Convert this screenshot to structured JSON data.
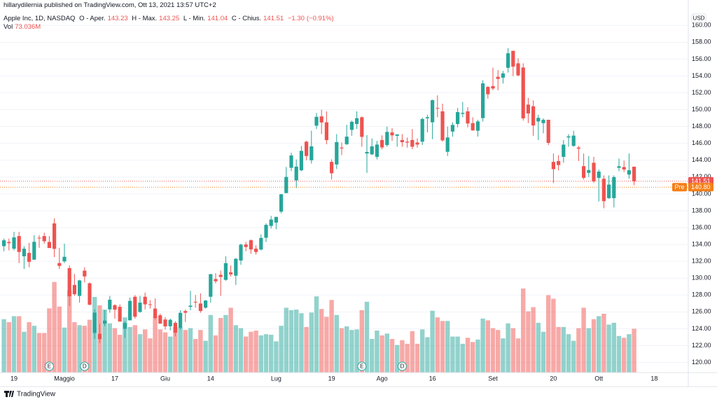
{
  "published": "hillarydilernia published on TradingView.com, Ott 13, 2021 13:57 UTC+2",
  "branding": "TradingView",
  "chart_data": {
    "type": "candlestick",
    "title": "Apple Inc, 1D, NASDAQ",
    "ohlc_legend": [
      {
        "label": "O - Aper.",
        "value": 143.23
      },
      {
        "label": "H - Max.",
        "value": 143.25
      },
      {
        "label": "L - Min.",
        "value": 141.04
      },
      {
        "label": "C - Chius.",
        "value": 141.51
      }
    ],
    "change": {
      "value": -1.3,
      "label": "−1.30"
    },
    "change_percent": {
      "value": -0.91,
      "label": "(−0.91%)"
    },
    "currency": "USD",
    "up_color": "#26a69a",
    "down_color": "#ef5350",
    "grid": true,
    "categories": [
      null,
      null,
      "19",
      null,
      null,
      null,
      null,
      null,
      null,
      null,
      null,
      null,
      "Maggio",
      null,
      null,
      null,
      null,
      null,
      null,
      null,
      null,
      null,
      "17",
      null,
      null,
      null,
      null,
      null,
      null,
      null,
      null,
      null,
      "Giu",
      null,
      null,
      null,
      null,
      null,
      null,
      null,
      null,
      "14",
      null,
      null,
      null,
      null,
      null,
      null,
      null,
      null,
      null,
      null,
      null,
      null,
      "Lug",
      null,
      null,
      null,
      null,
      null,
      null,
      null,
      null,
      null,
      null,
      "19",
      null,
      null,
      null,
      null,
      null,
      null,
      null,
      null,
      null,
      "Ago",
      null,
      null,
      null,
      null,
      null,
      null,
      null,
      null,
      null,
      "16",
      null,
      null,
      null,
      null,
      null,
      null,
      null,
      null,
      null,
      null,
      null,
      "Set",
      null,
      null,
      null,
      null,
      null,
      null,
      null,
      null,
      null,
      null,
      null,
      "20",
      null,
      null,
      null,
      null,
      null,
      null,
      null,
      null,
      "Ott",
      null,
      null,
      null,
      null,
      null,
      null,
      null,
      null,
      null,
      null,
      "18"
    ],
    "events": [
      null,
      null,
      null,
      null,
      null,
      null,
      null,
      null,
      null,
      "E",
      null,
      null,
      null,
      null,
      null,
      null,
      "D",
      null,
      null,
      null,
      null,
      null,
      null,
      null,
      null,
      null,
      null,
      null,
      null,
      null,
      null,
      null,
      null,
      null,
      null,
      null,
      null,
      null,
      null,
      null,
      null,
      null,
      null,
      null,
      null,
      null,
      null,
      null,
      null,
      null,
      null,
      null,
      null,
      null,
      null,
      null,
      null,
      null,
      null,
      null,
      null,
      null,
      null,
      null,
      null,
      null,
      null,
      null,
      null,
      null,
      null,
      "E",
      null,
      null,
      null,
      null,
      null,
      null,
      null,
      "D",
      null,
      null,
      null,
      null,
      null,
      null,
      null,
      null,
      null,
      null,
      null,
      null,
      null,
      null,
      null,
      null,
      null,
      null,
      null,
      null,
      null,
      null,
      null,
      null,
      null,
      null,
      null,
      null,
      null,
      null,
      null,
      null,
      null,
      null,
      null,
      null,
      null,
      null,
      null,
      null,
      null,
      null,
      null,
      null,
      null,
      null,
      null,
      null,
      null,
      null
    ],
    "open": [
      133.8,
      134.3,
      133.5,
      135.0,
      132.6,
      133.0,
      132.2,
      134.8,
      135.0,
      134.3,
      136.5,
      131.8,
      132.0,
      131.2,
      129.2,
      127.9,
      130.9,
      129.4,
      123.5,
      123.4,
      124.6,
      126.3,
      126.8,
      126.6,
      124.0,
      125.0,
      127.8,
      126.0,
      127.8,
      126.9,
      126.4,
      125.6,
      125.1,
      124.3,
      124.7,
      124.1,
      126.1,
      126.6,
      127.2,
      127.0,
      126.5,
      127.8,
      129.9,
      130.4,
      129.8,
      130.7,
      130.3,
      132.1,
      134.0,
      134.5,
      133.5,
      133.4,
      134.8,
      136.2,
      136.6,
      137.9,
      140.1,
      143.1,
      141.6,
      142.8,
      146.2,
      144.0,
      148.1,
      149.2,
      148.5,
      143.8,
      143.5,
      145.5,
      145.9,
      147.6,
      148.3,
      149.1,
      144.8,
      144.7,
      144.4,
      146.4,
      145.8,
      147.3,
      146.9,
      146.4,
      146.2,
      146.4,
      146.1,
      146.2,
      148.97,
      148.5,
      150.2,
      149.8,
      145.0,
      147.4,
      148.3,
      149.5,
      149.8,
      148.4,
      147.5,
      149.0,
      152.7,
      152.8,
      153.9,
      153.8,
      154.97,
      156.98,
      155.5,
      155.0,
      150.6,
      150.4,
      148.6,
      148.4,
      148.8,
      143.8,
      143.9,
      144.4,
      146.7,
      145.7,
      145.5,
      143.3,
      142.5,
      143.7,
      141.9,
      141.8,
      139.5,
      139.5,
      143.1,
      143.2,
      142.3,
      143.23,
      null,
      null,
      null,
      null
    ],
    "high": [
      134.7,
      134.7,
      135.5,
      135.5,
      133.8,
      134.2,
      135.1,
      135.1,
      135.4,
      135.0,
      137.1,
      133.6,
      134.1,
      131.5,
      130.5,
      129.8,
      131.3,
      129.5,
      126.3,
      124.6,
      126.2,
      127.9,
      126.9,
      126.9,
      124.9,
      127.7,
      128.0,
      127.9,
      128.3,
      127.4,
      127.6,
      125.8,
      125.4,
      125.2,
      124.9,
      126.2,
      126.3,
      128.5,
      128.0,
      128.2,
      127.4,
      130.5,
      130.6,
      130.9,
      132.6,
      131.5,
      132.4,
      134.1,
      134.3,
      134.6,
      133.9,
      135.2,
      136.5,
      137.4,
      137.3,
      140.0,
      143.2,
      144.9,
      144.1,
      145.7,
      146.3,
      147.5,
      149.6,
      150.0,
      149.8,
      144.1,
      147.1,
      146.1,
      148.2,
      148.7,
      149.8,
      149.2,
      146.97,
      146.6,
      146.3,
      146.95,
      148.0,
      147.8,
      147.1,
      147.1,
      146.7,
      147.7,
      146.6,
      149.05,
      149.4,
      151.2,
      151.7,
      150.7,
      148.0,
      148.5,
      150.2,
      150.9,
      150.3,
      149.1,
      148.8,
      153.5,
      152.8,
      154.98,
      154.7,
      154.6,
      157.3,
      157.0,
      156.1,
      155.5,
      151.4,
      151.1,
      149.4,
      148.97,
      148.8,
      144.8,
      144.6,
      146.4,
      147.1,
      147.5,
      145.7,
      144.8,
      144.5,
      144.4,
      142.9,
      142.2,
      142.2,
      142.2,
      144.2,
      143.96,
      144.8,
      143.25,
      null,
      null,
      null,
      null
    ],
    "low": [
      133.2,
      133.3,
      133.3,
      131.8,
      131.1,
      131.3,
      132.2,
      133.6,
      134.1,
      133.6,
      132.5,
      131.1,
      131.8,
      126.7,
      127.9,
      127.1,
      129.5,
      126.8,
      122.8,
      122.3,
      124.3,
      125.9,
      125.2,
      124.9,
      122.9,
      125.0,
      125.2,
      125.9,
      126.3,
      126.4,
      125.1,
      124.6,
      123.9,
      123.8,
      123.1,
      123.9,
      124.8,
      126.2,
      126.5,
      125.9,
      126.4,
      127.1,
      129.4,
      127.9,
      129.7,
      130.2,
      129.2,
      131.6,
      133.2,
      132.9,
      132.8,
      133.3,
      134.3,
      135.9,
      135.8,
      137.7,
      140.1,
      142.7,
      140.7,
      142.7,
      144.0,
      143.6,
      147.7,
      147.1,
      145.9,
      141.7,
      142.96,
      144.6,
      145.8,
      146.9,
      147.7,
      145.6,
      142.5,
      144.6,
      144.1,
      145.3,
      145.6,
      146.3,
      145.6,
      145.6,
      145.5,
      145.3,
      145.5,
      145.8,
      147.3,
      146.5,
      149.1,
      146.2,
      144.5,
      146.8,
      147.9,
      149.1,
      147.9,
      147.5,
      146.8,
      148.6,
      151.3,
      152.3,
      152.3,
      153.1,
      154.4,
      153.98,
      153.95,
      148.7,
      148.4,
      146.9,
      146.4,
      147.2,
      145.8,
      141.3,
      142.8,
      143.7,
      145.6,
      145.6,
      143.9,
      141.7,
      142.0,
      141.3,
      139.1,
      138.3,
      139.4,
      138.4,
      142.7,
      142.6,
      141.8,
      141.04,
      null,
      null,
      null,
      null
    ],
    "close": [
      134.5,
      134.16,
      134.84,
      133.11,
      133.5,
      131.94,
      134.32,
      134.72,
      134.39,
      133.58,
      133.48,
      131.46,
      132.54,
      127.85,
      128.1,
      129.74,
      130.21,
      126.85,
      125.91,
      122.77,
      124.97,
      127.45,
      126.27,
      124.85,
      124.69,
      127.31,
      125.43,
      127.1,
      126.9,
      126.85,
      125.28,
      124.61,
      124.28,
      125.06,
      123.54,
      125.89,
      125.9,
      126.74,
      127.13,
      126.11,
      127.35,
      130.48,
      129.64,
      130.15,
      131.79,
      130.46,
      132.3,
      133.98,
      133.7,
      133.41,
      133.11,
      134.78,
      136.33,
      136.96,
      137.27,
      139.96,
      142.02,
      144.57,
      143.24,
      145.11,
      144.5,
      145.64,
      149.15,
      148.48,
      146.39,
      142.45,
      146.15,
      145.4,
      146.8,
      148.56,
      148.99,
      146.77,
      144.98,
      145.64,
      145.86,
      145.52,
      147.36,
      146.95,
      147.06,
      146.14,
      146.09,
      145.6,
      145.86,
      148.89,
      149.1,
      151.12,
      150.19,
      146.36,
      146.7,
      148.19,
      149.71,
      149.62,
      148.36,
      147.54,
      148.6,
      153.12,
      151.83,
      152.51,
      153.65,
      154.3,
      156.69,
      155.11,
      154.07,
      148.97,
      149.55,
      148.12,
      149.03,
      148.79,
      146.06,
      142.94,
      143.43,
      145.85,
      146.83,
      146.92,
      145.37,
      141.91,
      142.83,
      141.5,
      142.65,
      139.14,
      141.11,
      142.0,
      143.29,
      142.9,
      142.81,
      141.51,
      null,
      null,
      null,
      null
    ],
    "volume": {
      "name": "Vol",
      "value_label": "73.036M",
      "values": [
        89,
        84,
        94,
        94,
        68,
        84,
        78,
        66,
        66,
        107,
        151,
        110,
        75,
        137,
        84,
        79,
        78,
        88,
        126,
        112,
        105,
        82,
        74,
        63,
        92,
        76,
        79,
        64,
        72,
        57,
        94,
        72,
        67,
        60,
        76,
        75,
        71,
        74,
        56,
        71,
        53,
        96,
        62,
        91,
        96,
        108,
        79,
        74,
        60,
        68,
        70,
        62,
        64,
        63,
        52,
        78,
        108,
        104,
        105,
        99,
        76,
        100,
        127,
        106,
        93,
        121,
        96,
        74,
        77,
        71,
        72,
        104,
        118,
        56,
        70,
        62,
        65,
        56,
        46,
        54,
        48,
        69,
        48,
        72,
        59,
        103,
        92,
        86,
        86,
        60,
        60,
        48,
        58,
        51,
        55,
        90,
        87,
        74,
        71,
        57,
        82,
        74,
        57,
        140,
        102,
        109,
        83,
        68,
        129,
        123,
        76,
        76,
        64,
        53,
        74,
        108,
        74,
        89,
        94,
        98,
        80,
        83,
        61,
        58,
        64,
        73.036,
        null,
        null,
        null,
        null
      ]
    },
    "ylim": [
      118.8,
      161.6
    ],
    "yticks": [
      {
        "value": 120,
        "label": "120.00"
      },
      {
        "value": 122,
        "label": "122.00"
      },
      {
        "value": 124,
        "label": "124.00"
      },
      {
        "value": 126,
        "label": "126.00"
      },
      {
        "value": 128,
        "label": "128.00"
      },
      {
        "value": 130,
        "label": "130.00"
      },
      {
        "value": 132,
        "label": "132.00"
      },
      {
        "value": 134,
        "label": "134.00"
      },
      {
        "value": 136,
        "label": "136.00"
      },
      {
        "value": 138,
        "label": "138.00"
      },
      {
        "value": 140,
        "label": "140.00"
      },
      {
        "value": 142,
        "label": "142.00"
      },
      {
        "value": 144,
        "label": "144.00"
      },
      {
        "value": 146,
        "label": "146.00"
      },
      {
        "value": 148,
        "label": "148.00"
      },
      {
        "value": 150,
        "label": "150.00"
      },
      {
        "value": 152,
        "label": "152.00"
      },
      {
        "value": 154,
        "label": "154.00"
      },
      {
        "value": 156,
        "label": "156.00"
      },
      {
        "value": 158,
        "label": "158.00"
      },
      {
        "value": 160,
        "label": "160.00"
      }
    ],
    "last_price": 141.51,
    "last_color": "#ef5350",
    "premarket": {
      "name": "Pre",
      "price": {
        "value": 140.8,
        "label": "140.80"
      },
      "color": "#f57f17"
    }
  }
}
